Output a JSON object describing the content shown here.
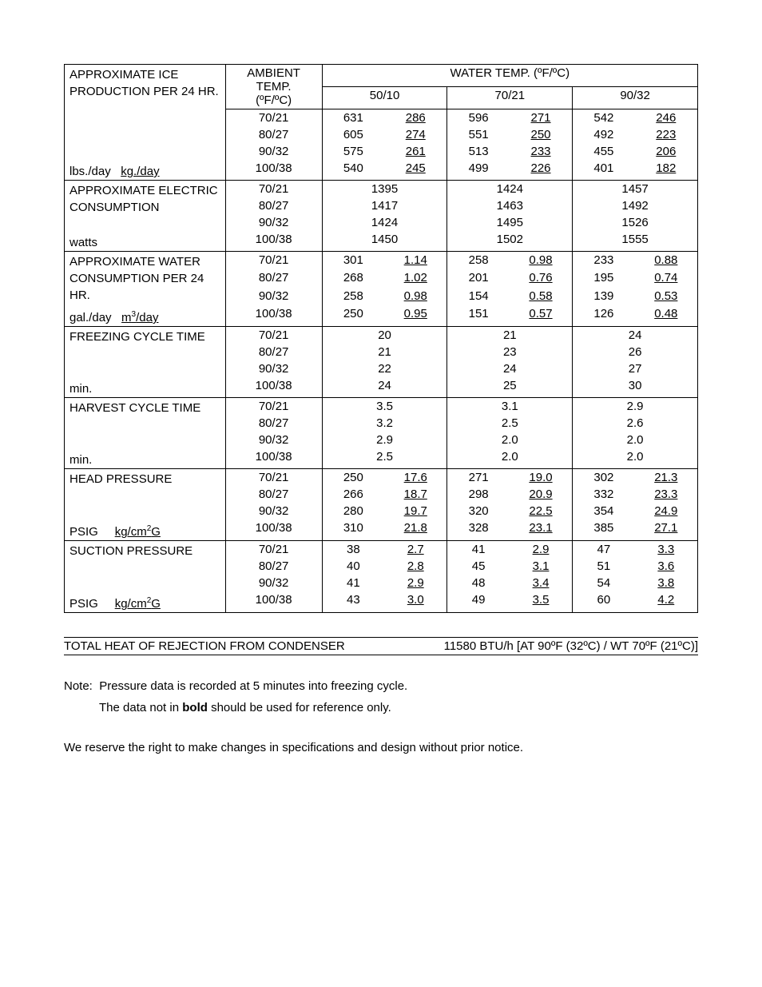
{
  "header": {
    "approx_ice": "APPROXIMATE ICE PRODUCTION PER 24 HR.",
    "ambient": "AMBIENT TEMP.",
    "ambient_unit": "(ºF/ºC)",
    "water_temp": "WATER TEMP. (ºF/ºC)",
    "wt1": "50/10",
    "wt2": "70/21",
    "wt3": "90/32"
  },
  "ambient_rows": [
    "70/21",
    "80/27",
    "90/32",
    "100/38"
  ],
  "sections": [
    {
      "title_top": "APPROXIMATE ICE",
      "title_bot": "PRODUCTION PER 24 HR.",
      "unit_html": "lbs./day&nbsp;&nbsp;&nbsp;<span class='u'>kg./day</span>",
      "dual": true,
      "rows": [
        {
          "a": "70/21",
          "c1a": "631",
          "c1b": "286",
          "c2a": "596",
          "c2b": "271",
          "c3a": "542",
          "c3b": "246",
          "b1a": true,
          "b2a": true,
          "b3a": true
        },
        {
          "a": "80/27",
          "c1a": "605",
          "c1b": "274",
          "c2a": "551",
          "c2b": "250",
          "c3a": "492",
          "c3b": "223"
        },
        {
          "a": "90/32",
          "c1a": "575",
          "c1b": "261",
          "c2a": "513",
          "c2b": "233",
          "c3a": "455",
          "c3b": "206"
        },
        {
          "a": "100/38",
          "c1a": "540",
          "c1b": "245",
          "c2a": "499",
          "c2b": "226",
          "c3a": "401",
          "c3b": "182"
        }
      ]
    },
    {
      "title_top": "APPROXIMATE ELECTRIC",
      "title_bot": "CONSUMPTION",
      "unit_html": "watts",
      "dual": false,
      "rows": [
        {
          "a": "70/21",
          "c1": "1395",
          "c2": "1424",
          "c3": "1457",
          "b1": true
        },
        {
          "a": "80/27",
          "c1": "1417",
          "c2": "1463",
          "c3": "1492"
        },
        {
          "a": "90/32",
          "c1": "1424",
          "c2": "1495",
          "c3": "1526",
          "b2": true
        },
        {
          "a": "100/38",
          "c1": "1450",
          "c2": "1502",
          "c3": "1555"
        }
      ]
    },
    {
      "title_top": "APPROXIMATE WATER",
      "title_bot": "CONSUMPTION PER 24 HR.",
      "unit_html": "gal./day&nbsp;&nbsp;&nbsp;<span class='u'>m<sup>3</sup>/day</span>",
      "dual": true,
      "rows": [
        {
          "a": "70/21",
          "c1a": "301",
          "c1b": "1.14",
          "c2a": "258",
          "c2b": "0.98",
          "c3a": "233",
          "c3b": "0.88",
          "b1a": true
        },
        {
          "a": "80/27",
          "c1a": "268",
          "c1b": "1.02",
          "c2a": "201",
          "c2b": "0.76",
          "c3a": "195",
          "c3b": "0.74"
        },
        {
          "a": "90/32",
          "c1a": "258",
          "c1b": "0.98",
          "c2a": "154",
          "c2b": "0.58",
          "c3a": "139",
          "c3b": "0.53",
          "b2a": true
        },
        {
          "a": "100/38",
          "c1a": "250",
          "c1b": "0.95",
          "c2a": "151",
          "c2b": "0.57",
          "c3a": "126",
          "c3b": "0.48"
        }
      ]
    },
    {
      "title_top": "FREEZING CYCLE TIME",
      "title_bot": "",
      "unit_html": "min.",
      "dual": false,
      "rows": [
        {
          "a": "70/21",
          "c1": "20",
          "c2": "21",
          "c3": "24",
          "b1": true
        },
        {
          "a": "80/27",
          "c1": "21",
          "c2": "23",
          "c3": "26"
        },
        {
          "a": "90/32",
          "c1": "22",
          "c2": "24",
          "c3": "27",
          "b2": true
        },
        {
          "a": "100/38",
          "c1": "24",
          "c2": "25",
          "c3": "30"
        }
      ]
    },
    {
      "title_top": "HARVEST CYCLE TIME",
      "title_bot": "",
      "unit_html": "min.",
      "dual": false,
      "rows": [
        {
          "a": "70/21",
          "c1": "3.5",
          "c2": "3.1",
          "c3": "2.9",
          "b1": true
        },
        {
          "a": "80/27",
          "c1": "3.2",
          "c2": "2.5",
          "c3": "2.6"
        },
        {
          "a": "90/32",
          "c1": "2.9",
          "c2": "2.0",
          "c3": "2.0",
          "b2": true
        },
        {
          "a": "100/38",
          "c1": "2.5",
          "c2": "2.0",
          "c3": "2.0"
        }
      ]
    },
    {
      "title_top": "HEAD PRESSURE",
      "title_bot": "",
      "unit_html": "PSIG&nbsp;&nbsp;&nbsp;&nbsp;&nbsp;<span class='u'>kg/cm<sup>2</sup>G</span>",
      "dual": true,
      "rows": [
        {
          "a": "70/21",
          "c1a": "250",
          "c1b": "17.6",
          "c2a": "271",
          "c2b": "19.0",
          "c3a": "302",
          "c3b": "21.3",
          "b1a": true
        },
        {
          "a": "80/27",
          "c1a": "266",
          "c1b": "18.7",
          "c2a": "298",
          "c2b": "20.9",
          "c3a": "332",
          "c3b": "23.3"
        },
        {
          "a": "90/32",
          "c1a": "280",
          "c1b": "19.7",
          "c2a": "320",
          "c2b": "22.5",
          "c3a": "354",
          "c3b": "24.9",
          "b2a": true
        },
        {
          "a": "100/38",
          "c1a": "310",
          "c1b": "21.8",
          "c2a": "328",
          "c2b": "23.1",
          "c3a": "385",
          "c3b": "27.1"
        }
      ]
    },
    {
      "title_top": "SUCTION PRESSURE",
      "title_bot": "",
      "unit_html": "PSIG&nbsp;&nbsp;&nbsp;&nbsp;&nbsp;<span class='u'>kg/cm<sup>2</sup>G</span>",
      "dual": true,
      "rows": [
        {
          "a": "70/21",
          "c1a": "38",
          "c1b": "2.7",
          "c2a": "41",
          "c2b": "2.9",
          "c3a": "47",
          "c3b": "3.3",
          "b1a": true
        },
        {
          "a": "80/27",
          "c1a": "40",
          "c1b": "2.8",
          "c2a": "45",
          "c2b": "3.1",
          "c3a": "51",
          "c3b": "3.6"
        },
        {
          "a": "90/32",
          "c1a": "41",
          "c1b": "2.9",
          "c2a": "48",
          "c2b": "3.4",
          "c3a": "54",
          "c3b": "3.8",
          "b2a": true
        },
        {
          "a": "100/38",
          "c1a": "43",
          "c1b": "3.0",
          "c2a": "49",
          "c2b": "3.5",
          "c3a": "60",
          "c3b": "4.2"
        }
      ]
    }
  ],
  "thr": {
    "label": "TOTAL HEAT OF REJECTION FROM CONDENSER",
    "value": "11580 BTU/h  [AT 90ºF (32ºC) / WT 70ºF (21ºC)]"
  },
  "notes": {
    "prefix": "Note:",
    "line1": "Pressure data is recorded at 5 minutes into freezing cycle.",
    "line2a": "The data not in ",
    "line2b": "bold",
    "line2c": " should be used for reference only."
  },
  "footer": "We reserve the right to make changes in specifications and design without prior notice."
}
